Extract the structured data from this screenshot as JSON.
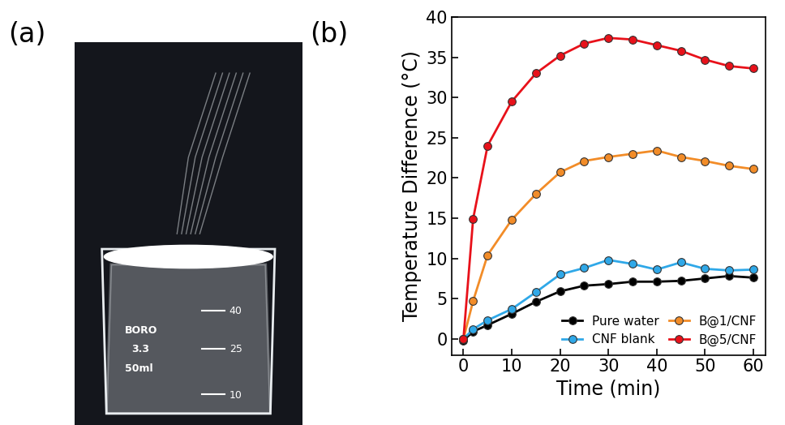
{
  "chart_data": {
    "type": "line",
    "panel_label": "(b)",
    "x_label": "Time (min)",
    "y_label": "Temperature Difference (°C)",
    "x": [
      0,
      2,
      5,
      10,
      15,
      20,
      25,
      30,
      35,
      40,
      45,
      50,
      55,
      60
    ],
    "series": [
      {
        "name": "Pure water",
        "color": "#000000",
        "marker": "o",
        "line_style": "solid",
        "values": [
          -0.2,
          0.9,
          1.7,
          3.1,
          4.6,
          5.9,
          6.6,
          6.8,
          7.1,
          7.1,
          7.2,
          7.5,
          7.8,
          7.6
        ]
      },
      {
        "name": "CNF blank",
        "color": "#2fa8e8",
        "marker": "o",
        "line_style": "solid",
        "values": [
          0.0,
          1.2,
          2.3,
          3.7,
          5.8,
          8.0,
          8.8,
          9.8,
          9.3,
          8.6,
          9.5,
          8.7,
          8.5,
          8.6
        ]
      },
      {
        "name": "B@1/CNF",
        "color": "#f28c28",
        "marker": "o",
        "line_style": "solid",
        "values": [
          0.0,
          4.7,
          10.4,
          14.8,
          18.0,
          20.7,
          22.1,
          22.6,
          23.0,
          23.4,
          22.6,
          22.1,
          21.5,
          21.1
        ]
      },
      {
        "name": "B@5/CNF",
        "color": "#e8111a",
        "marker": "o",
        "line_style": "solid",
        "values": [
          0.0,
          14.9,
          24.0,
          29.5,
          33.0,
          35.2,
          36.7,
          37.4,
          37.2,
          36.5,
          35.8,
          34.7,
          33.9,
          33.6
        ]
      }
    ],
    "xlim": [
      -2.5,
      62.5
    ],
    "xticks": [
      0,
      10,
      20,
      30,
      40,
      50,
      60
    ],
    "ylim": [
      -2,
      40
    ],
    "yticks": [
      0,
      5,
      10,
      15,
      20,
      25,
      30,
      35,
      40
    ],
    "grid": false,
    "legend": "lower right"
  },
  "photo": {
    "panel_label": "(a)",
    "beaker_texts": [
      "BORO",
      "3.3",
      "50ml",
      "40",
      "25",
      "10"
    ]
  }
}
